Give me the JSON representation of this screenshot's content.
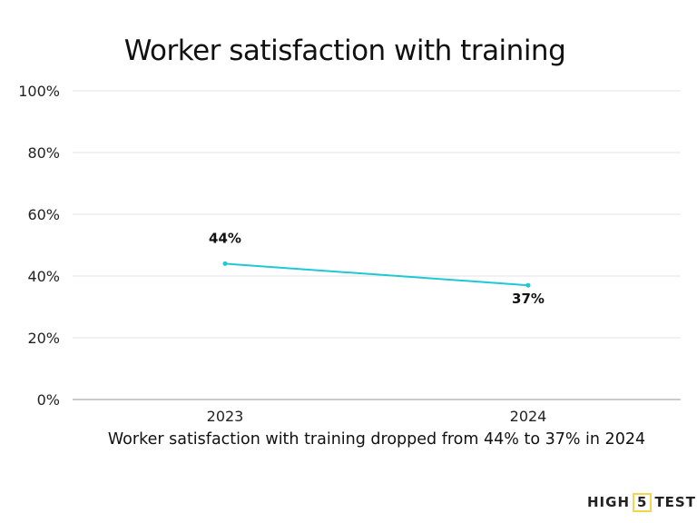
{
  "chart_data": {
    "type": "line",
    "title": "Worker satisfaction with training",
    "subtitle": "Worker satisfaction with training dropped from 44% to 37% in 2024",
    "categories": [
      "2023",
      "2024"
    ],
    "values": [
      44,
      37
    ],
    "data_labels": [
      "44%",
      "37%"
    ],
    "ylim": [
      0,
      100
    ],
    "yticks": [
      0,
      20,
      40,
      60,
      80,
      100
    ],
    "ytick_labels": [
      "0%",
      "20%",
      "40%",
      "60%",
      "80%",
      "100%"
    ],
    "grid": true,
    "line_color": "#1ec8d4"
  },
  "logo": {
    "left": "HIGH",
    "mid": "5",
    "right": "TEST"
  }
}
